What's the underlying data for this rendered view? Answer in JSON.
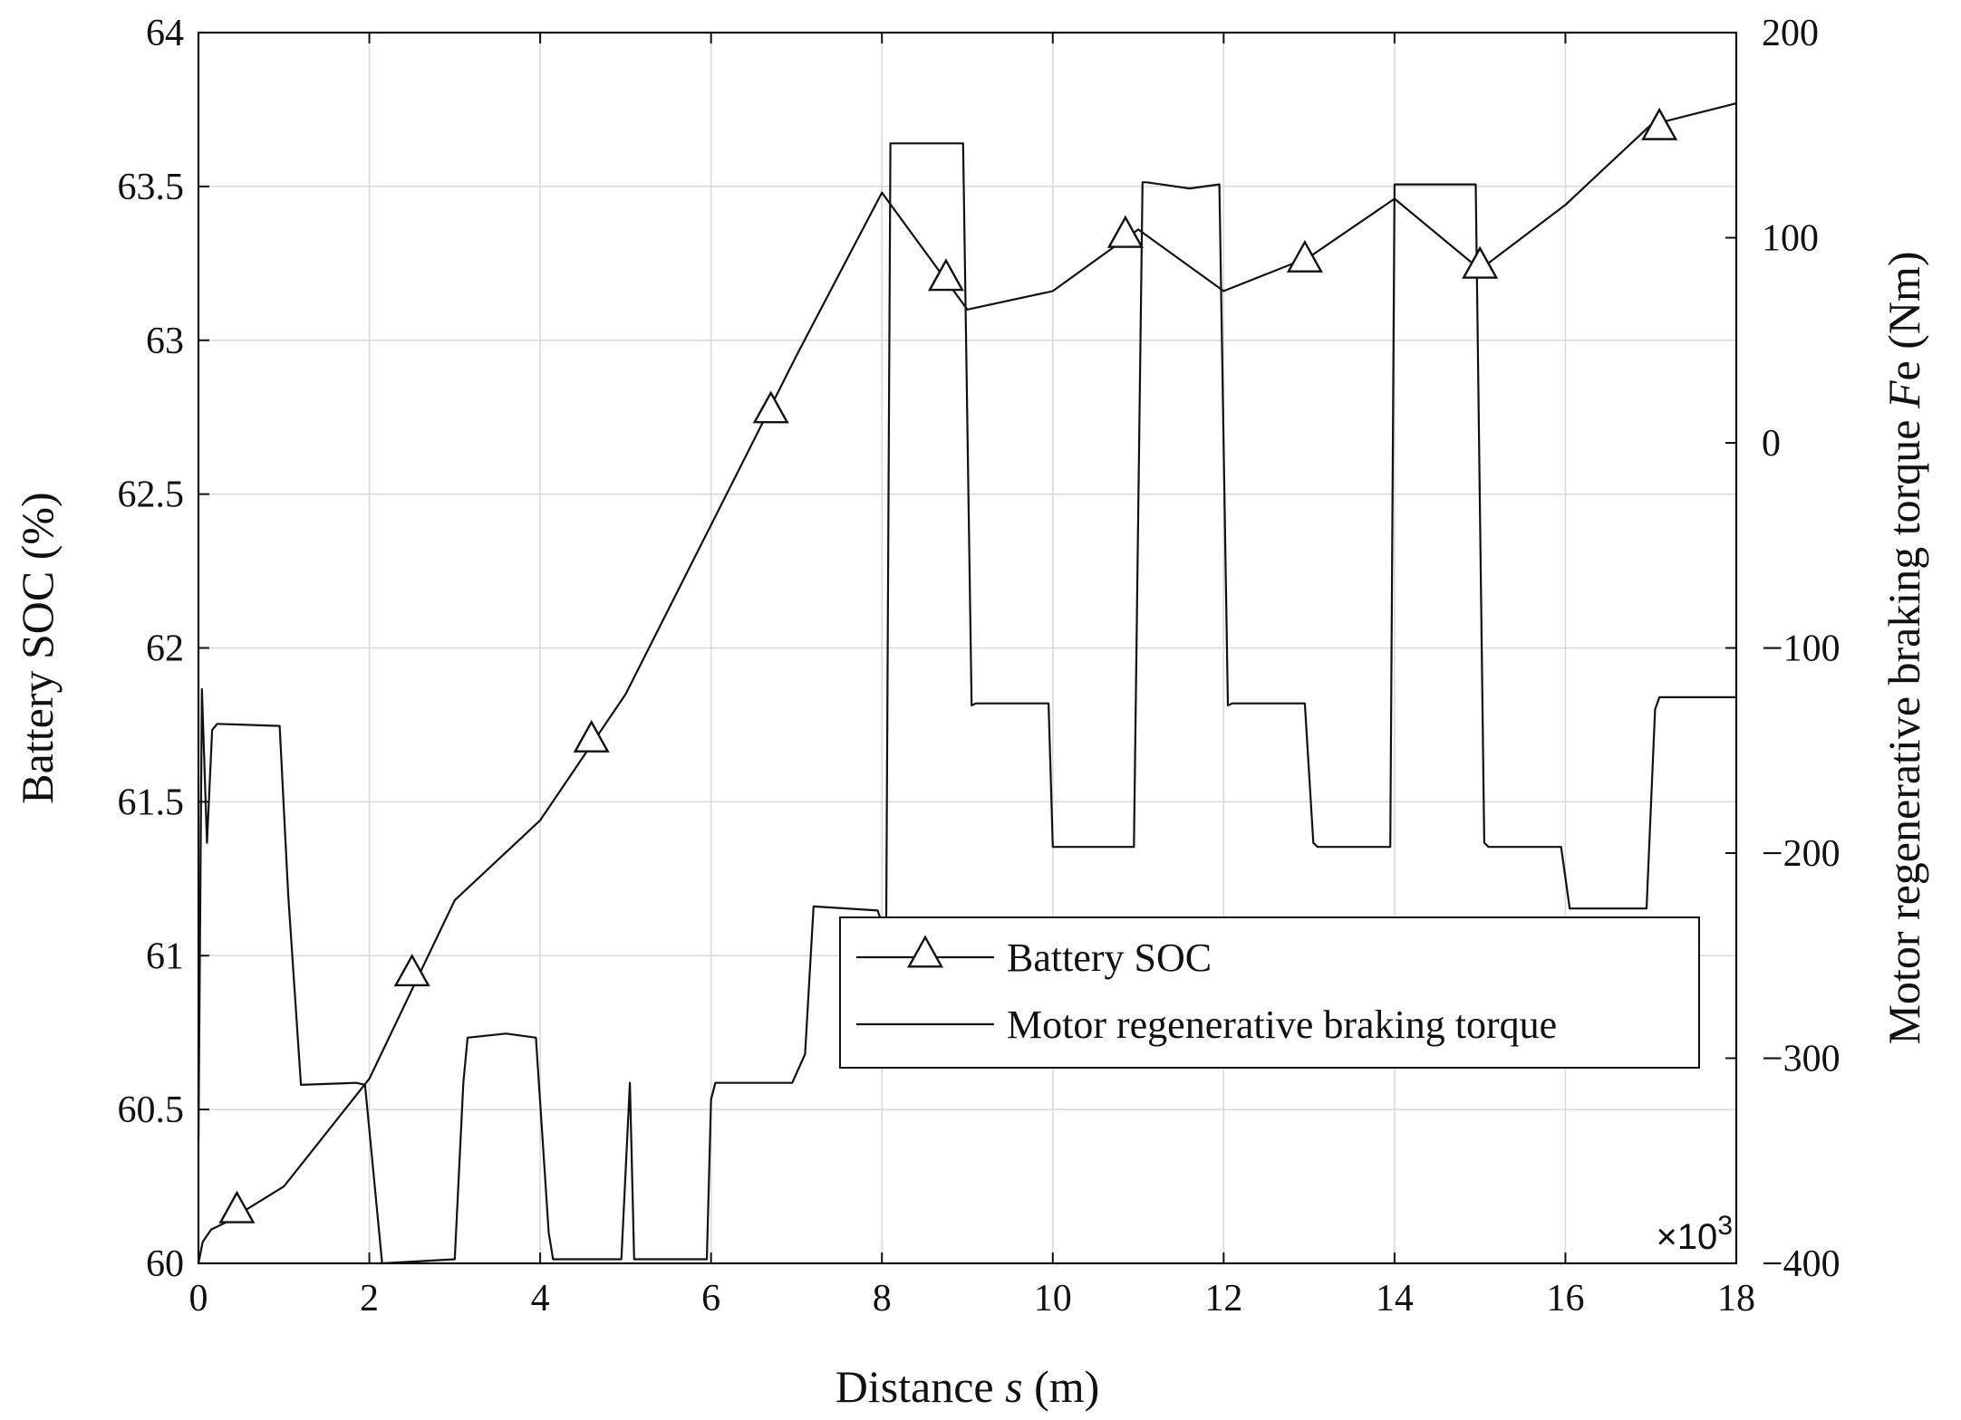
{
  "chart_data": {
    "type": "line",
    "xlabel_prefix": "Distance ",
    "xlabel_var": "s",
    "xlabel_suffix": " (m)",
    "ylabel_left": "Battery SOC (%)",
    "ylabel_right_prefix": "Motor regenerative braking torque ",
    "ylabel_right_var": "F",
    "ylabel_right_suffix": "e (Nm)",
    "x_multiplier": "×10",
    "x_multiplier_exp": "3",
    "xlim": [
      0,
      18
    ],
    "ylim_left": [
      60,
      64
    ],
    "ylim_right": [
      -400,
      200
    ],
    "x_ticks": [
      "0",
      "2",
      "4",
      "6",
      "8",
      "10",
      "12",
      "14",
      "16",
      "18"
    ],
    "x_tick_values": [
      0,
      2,
      4,
      6,
      8,
      10,
      12,
      14,
      16,
      18
    ],
    "y_left_ticks": [
      "60",
      "60.5",
      "61",
      "61.5",
      "62",
      "62.5",
      "63",
      "63.5",
      "64"
    ],
    "y_left_tick_values": [
      60,
      60.5,
      61,
      61.5,
      62,
      62.5,
      63,
      63.5,
      64
    ],
    "y_right_ticks": [
      "−400",
      "−300",
      "−200",
      "−100",
      "0",
      "100",
      "200"
    ],
    "y_right_tick_values": [
      -400,
      -300,
      -200,
      -100,
      0,
      100,
      200
    ],
    "grid": true,
    "legend_position": "center-right",
    "series": [
      {
        "name": "Battery SOC",
        "axis": "left",
        "marker": "triangle",
        "x": [
          0,
          0.05,
          0.15,
          0.3,
          1.0,
          2.0,
          3.0,
          4.0,
          5.0,
          6.0,
          7.0,
          8.0,
          9.0,
          10.0,
          11.0,
          12.0,
          13.0,
          14.0,
          15.0,
          16.0,
          17.0,
          18.0
        ],
        "y": [
          60.0,
          60.07,
          60.11,
          60.13,
          60.25,
          60.6,
          61.18,
          61.44,
          61.85,
          62.4,
          62.95,
          63.48,
          63.1,
          63.16,
          63.36,
          63.16,
          63.27,
          63.46,
          63.23,
          63.44,
          63.7,
          63.77
        ],
        "marker_x": [
          0.45,
          2.5,
          4.6,
          6.7,
          8.75,
          10.85,
          12.95,
          15.0,
          17.1
        ],
        "marker_y": [
          60.17,
          60.94,
          61.7,
          62.77,
          63.2,
          63.34,
          63.26,
          63.24,
          63.69
        ]
      },
      {
        "name": "Motor regenerative braking torque",
        "axis": "right",
        "x": [
          0,
          0.04,
          0.1,
          0.16,
          0.22,
          0.95,
          1.05,
          1.2,
          1.85,
          1.95,
          2.15,
          3.0,
          3.1,
          3.15,
          3.6,
          3.95,
          4.1,
          4.15,
          4.95,
          5.05,
          5.1,
          5.95,
          6.0,
          6.05,
          6.95,
          7.1,
          7.2,
          7.95,
          8.05,
          8.1,
          8.95,
          9.05,
          9.1,
          9.95,
          10.0,
          10.05,
          10.95,
          11.05,
          11.1,
          11.6,
          11.95,
          12.05,
          12.1,
          12.95,
          13.05,
          13.1,
          13.95,
          14.0,
          14.05,
          14.95,
          15.05,
          15.1,
          15.95,
          16.05,
          16.1,
          16.95,
          17.05,
          17.1,
          18.0
        ],
        "y": [
          -340,
          -120,
          -195,
          -140,
          -137,
          -138,
          -220,
          -313,
          -312,
          -313,
          -400,
          -398,
          -312,
          -290,
          -288,
          -290,
          -385,
          -398,
          -398,
          -312,
          -398,
          -398,
          -320,
          -312,
          -312,
          -298,
          -226,
          -228,
          -240,
          146,
          146,
          -128,
          -127,
          -127,
          -197,
          -197,
          -197,
          127,
          127,
          124,
          126,
          -128,
          -127,
          -127,
          -195,
          -197,
          -197,
          126,
          126,
          126,
          -195,
          -197,
          -197,
          -227,
          -227,
          -227,
          -130,
          -124,
          -124
        ]
      }
    ]
  }
}
